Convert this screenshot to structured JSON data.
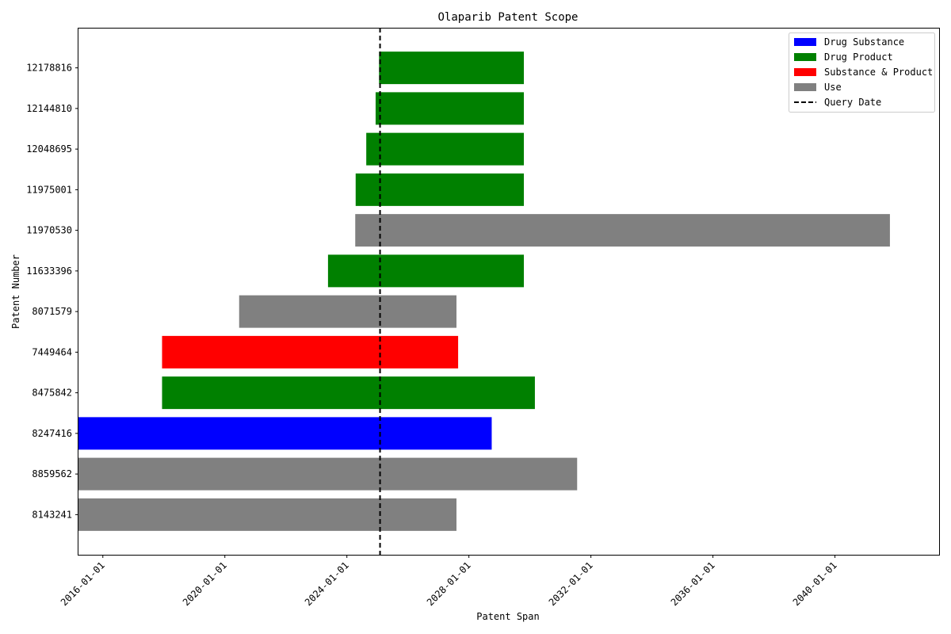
{
  "chart_data": {
    "type": "bar",
    "orientation": "horizontal-timeline",
    "title": "Olaparib Patent Scope",
    "xlabel": "Patent Span",
    "ylabel": "Patent Number",
    "xlim": [
      "2015-03-15",
      "2043-06-01"
    ],
    "xticks": [
      "2016-01-01",
      "2020-01-01",
      "2024-01-01",
      "2028-01-01",
      "2032-01-01",
      "2036-01-01",
      "2040-01-01"
    ],
    "query_date": "2025-02-01",
    "categories": [
      "8143241",
      "8859562",
      "8247416",
      "8475842",
      "7449464",
      "8071579",
      "11633396",
      "11970530",
      "11975001",
      "12048695",
      "12144810",
      "12178816"
    ],
    "series": [
      {
        "name": "Drug Substance",
        "color": "#0000ff"
      },
      {
        "name": "Drug Product",
        "color": "#008000"
      },
      {
        "name": "Substance & Product",
        "color": "#ff0000"
      },
      {
        "name": "Use",
        "color": "#808080"
      }
    ],
    "bars": [
      {
        "patent": "8143241",
        "start": "2015-03-01",
        "end": "2027-08-05",
        "type": "Use"
      },
      {
        "patent": "8859562",
        "start": "2015-03-01",
        "end": "2031-07-20",
        "type": "Use"
      },
      {
        "patent": "8247416",
        "start": "2015-03-01",
        "end": "2028-09-30",
        "type": "Drug Substance"
      },
      {
        "patent": "8475842",
        "start": "2017-12-10",
        "end": "2030-03-01",
        "type": "Drug Product"
      },
      {
        "patent": "7449464",
        "start": "2017-12-10",
        "end": "2027-08-25",
        "type": "Substance & Product"
      },
      {
        "patent": "8071579",
        "start": "2020-06-20",
        "end": "2027-08-05",
        "type": "Use"
      },
      {
        "patent": "11633396",
        "start": "2023-05-20",
        "end": "2029-10-20",
        "type": "Drug Product"
      },
      {
        "patent": "11970530",
        "start": "2024-04-10",
        "end": "2041-10-20",
        "type": "Use"
      },
      {
        "patent": "11975001",
        "start": "2024-04-15",
        "end": "2029-10-20",
        "type": "Drug Product"
      },
      {
        "patent": "12048695",
        "start": "2024-08-20",
        "end": "2029-10-20",
        "type": "Drug Product"
      },
      {
        "patent": "12144810",
        "start": "2024-12-10",
        "end": "2029-10-20",
        "type": "Drug Product"
      },
      {
        "patent": "12178816",
        "start": "2025-01-20",
        "end": "2029-10-20",
        "type": "Drug Product"
      }
    ],
    "legend": {
      "position": "top-right",
      "entries": [
        "Drug Substance",
        "Drug Product",
        "Substance & Product",
        "Use",
        "Query Date"
      ],
      "query_date_label": "Query Date"
    },
    "grid": false
  }
}
